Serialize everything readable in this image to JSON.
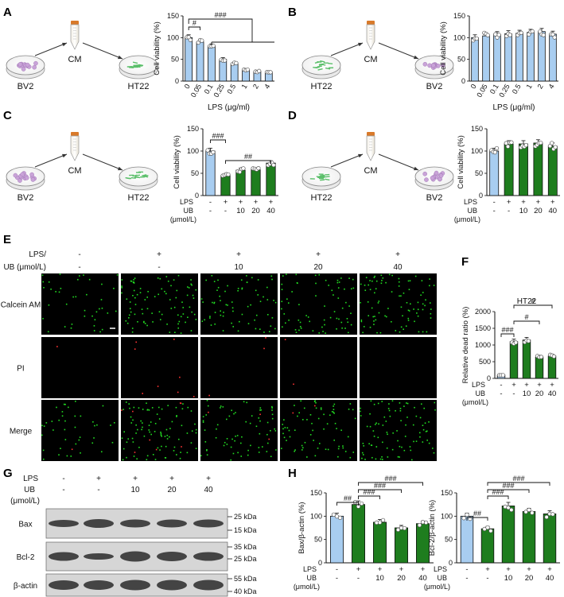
{
  "panels": [
    "A",
    "B",
    "C",
    "D",
    "E",
    "F",
    "G",
    "H"
  ],
  "schema": {
    "A": {
      "source": "BV2",
      "medium": "CM",
      "target": "HT22"
    },
    "B": {
      "source": "HT22",
      "medium": "CM",
      "target": "BV2"
    },
    "C": {
      "source": "BV2",
      "medium": "CM",
      "target": "HT22"
    },
    "D": {
      "source": "HT22",
      "medium": "CM",
      "target": "BV2"
    }
  },
  "labels": {
    "cell_viability": "Cell viability (%)",
    "lps_axis": "LPS (μg/ml)",
    "lps": "LPS",
    "ub": "UB",
    "unit": "(μmol/L)",
    "lps_slash": "LPS/",
    "ub_unit": "UB (μmol/L)"
  },
  "colors": {
    "blue": "#a8cdf0",
    "green": "#1e7d1e",
    "fluor": "#22dd22",
    "red_dot": "#ff3333"
  },
  "signs": {
    "lps": [
      "-",
      "+",
      "+",
      "+",
      "+"
    ],
    "ub": [
      "-",
      "-",
      "10",
      "20",
      "40"
    ]
  },
  "microscopy": {
    "rows": [
      "Calcein AM",
      "PI",
      "Merge"
    ],
    "lps_row": [
      "-",
      "+",
      "+",
      "+",
      "+"
    ],
    "ub_row": [
      "-",
      "-",
      "10",
      "20",
      "40"
    ]
  },
  "western": {
    "lps_row": [
      "-",
      "+",
      "+",
      "+",
      "+"
    ],
    "ub_row": [
      "-",
      "-",
      "10",
      "20",
      "40"
    ],
    "bands": [
      "Bax",
      "Bcl-2",
      "β-actin"
    ],
    "markers": [
      "25 kDa",
      "15 kDa",
      "35 kDa",
      "25 kDa",
      "55 kDa",
      "40 kDa"
    ]
  },
  "chart_data": [
    {
      "panel": "A",
      "type": "bar",
      "categories": [
        "0",
        "0.05",
        "0.1",
        "0.25",
        "0.5",
        "1",
        "2",
        "4"
      ],
      "values": [
        100,
        90,
        80,
        50,
        40,
        25,
        22,
        21
      ],
      "ylabel": "Cell viability (%)",
      "xlabel": "LPS (μg/ml)",
      "ylim": [
        0,
        150
      ],
      "yticks": [
        "0",
        "50",
        "100",
        "150"
      ],
      "annotations": [
        "#",
        "###"
      ]
    },
    {
      "panel": "B",
      "type": "bar",
      "categories": [
        "0",
        "0.05",
        "0.1",
        "0.25",
        "0.5",
        "1",
        "2",
        "4"
      ],
      "values": [
        100,
        104,
        107,
        109,
        110,
        112,
        114,
        108
      ],
      "ylabel": "Cell viability (%)",
      "xlabel": "LPS (μg/ml)",
      "ylim": [
        0,
        150
      ],
      "yticks": [
        "0",
        "50",
        "100",
        "150"
      ]
    },
    {
      "panel": "C",
      "type": "bar",
      "categories": [
        "-/-",
        "+/-",
        "+/10",
        "+/20",
        "+/40"
      ],
      "values": [
        100,
        45,
        57,
        58,
        73
      ],
      "ylabel": "Cell viability (%)",
      "ylim": [
        0,
        150
      ],
      "yticks": [
        "0",
        "50",
        "100",
        "150"
      ],
      "annotations": [
        "###",
        "##"
      ]
    },
    {
      "panel": "D",
      "type": "bar",
      "categories": [
        "-/-",
        "+/-",
        "+/10",
        "+/20",
        "+/40"
      ],
      "values": [
        100,
        116,
        116,
        118,
        111
      ],
      "ylabel": "Cell viability (%)",
      "ylim": [
        0,
        150
      ],
      "yticks": [
        "0",
        "50",
        "100",
        "150"
      ]
    },
    {
      "panel": "F",
      "type": "bar",
      "title": "HT22",
      "categories": [
        "-/-",
        "+/-",
        "+/10",
        "+/20",
        "+/40"
      ],
      "values": [
        100,
        1100,
        1150,
        640,
        670
      ],
      "ylabel": "Relative dead ratio (%)",
      "ylim": [
        0,
        2000
      ],
      "yticks": [
        "0",
        "500",
        "1000",
        "1500",
        "2000"
      ],
      "annotations": [
        "###",
        "#",
        "#"
      ]
    },
    {
      "panel": "H1",
      "type": "bar",
      "categories": [
        "-/-",
        "+/-",
        "+/10",
        "+/20",
        "+/40"
      ],
      "values": [
        100,
        125,
        87,
        75,
        84
      ],
      "ylabel": "Bax/β-actin (%)",
      "ylim": [
        0,
        150
      ],
      "yticks": [
        "0",
        "50",
        "100",
        "150"
      ],
      "annotations": [
        "##",
        "###",
        "###",
        "###"
      ]
    },
    {
      "panel": "H2",
      "type": "bar",
      "categories": [
        "-/-",
        "+/-",
        "+/10",
        "+/20",
        "+/40"
      ],
      "values": [
        100,
        73,
        122,
        110,
        105
      ],
      "ylabel": "Bcl-2/β-actin (%)",
      "ylim": [
        0,
        150
      ],
      "yticks": [
        "0",
        "50",
        "100",
        "150"
      ],
      "annotations": [
        "##",
        "###",
        "###",
        "###"
      ]
    }
  ]
}
